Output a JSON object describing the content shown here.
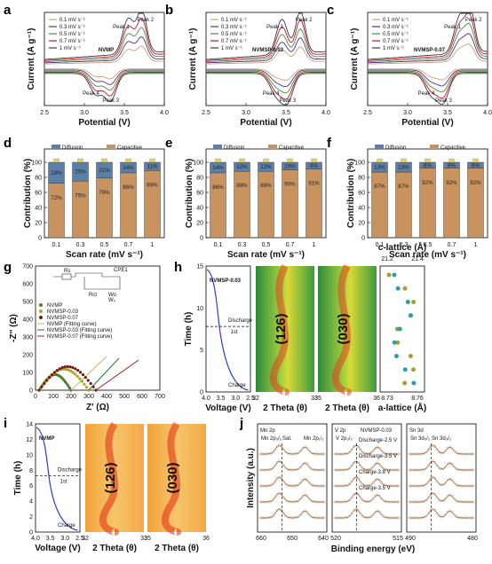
{
  "panels": {
    "a": "a",
    "b": "b",
    "c": "c",
    "d": "d",
    "e": "e",
    "f": "f",
    "g": "g",
    "h": "h",
    "i": "i",
    "j": "j"
  },
  "colors": {
    "diffusion": "#5b7fa6",
    "capacitive": "#c9935f",
    "cv": [
      "#c9a27a",
      "#5a2d82",
      "#4b8f3a",
      "#c8102e",
      "#3a3a3a"
    ]
  },
  "chart_data": [
    {
      "id": "a",
      "type": "line",
      "sample": "NVMP",
      "xlabel": "Potential (V)",
      "ylabel": "Current (A g⁻¹)",
      "xlim": [
        2.5,
        4.0
      ],
      "xticks": [
        "2.5",
        "3.0",
        "3.5",
        "4.0"
      ],
      "series": [
        {
          "name": "0.1 mV s⁻¹"
        },
        {
          "name": "0.3 mV s⁻¹"
        },
        {
          "name": "0.5 mV s⁻¹"
        },
        {
          "name": "0.7 mV s⁻¹"
        },
        {
          "name": "1 mV s⁻¹"
        }
      ],
      "peaks": {
        "p1": {
          "label": "Peak 1",
          "x": 3.55
        },
        "p2": {
          "label": "Peak 2",
          "x": 3.72
        },
        "p3": {
          "label": "Peak 3",
          "x": 3.33
        },
        "p4": {
          "label": "Peak 4",
          "x": 3.15
        }
      }
    },
    {
      "id": "b",
      "type": "line",
      "sample": "NVMSP-0.03",
      "xlabel": "Potential (V)",
      "ylabel": "Current (A g⁻¹)",
      "xlim": [
        2.5,
        4.0
      ],
      "xticks": [
        "2.5",
        "3.0",
        "3.5",
        "4.0"
      ],
      "series": [
        {
          "name": "0.1 mV s⁻¹"
        },
        {
          "name": "0.3 mV s⁻¹"
        },
        {
          "name": "0.5 mV s⁻¹"
        },
        {
          "name": "0.7 mV s⁻¹"
        },
        {
          "name": "1 mV s⁻¹"
        }
      ],
      "peaks": {
        "p1": {
          "label": "Peak 1",
          "x": 3.45
        },
        "p2": {
          "label": "Peak 2",
          "x": 3.68
        },
        "p3": {
          "label": "Peak 3",
          "x": 3.52
        },
        "p4": {
          "label": "Peak 4",
          "x": 3.38
        }
      }
    },
    {
      "id": "c",
      "type": "line",
      "sample": "NVMSP-0.07",
      "xlabel": "Potential (V)",
      "ylabel": "Current (A g⁻¹)",
      "xlim": [
        2.5,
        4.0
      ],
      "xticks": [
        "2.5",
        "3.0",
        "3.5",
        "4.0"
      ],
      "series": [
        {
          "name": "0.1 mV s⁻¹"
        },
        {
          "name": "0.3 mV s⁻¹"
        },
        {
          "name": "0.5 mV s⁻¹"
        },
        {
          "name": "0.7 mV s⁻¹"
        },
        {
          "name": "1 mV s⁻¹"
        }
      ],
      "peaks": {
        "p1": {
          "label": "Peak 1",
          "x": 3.65
        },
        "p2": {
          "label": "Peak 2",
          "x": 3.78
        },
        "p3": {
          "label": "Peak 3",
          "x": 3.45
        },
        "p4": {
          "label": "Peak 4",
          "x": 3.3
        }
      }
    },
    {
      "id": "d",
      "type": "bar",
      "xlabel": "Scan rate (mV s⁻¹)",
      "ylabel": "Contribution (%)",
      "ylim": [
        0,
        100
      ],
      "yticks": [
        "0",
        "20",
        "40",
        "60",
        "80",
        "100"
      ],
      "categories": [
        "0.1",
        "0.3",
        "0.5",
        "0.7",
        "1"
      ],
      "series": [
        {
          "name": "Diffusion",
          "values": [
            28,
            25,
            21,
            14,
            11
          ],
          "labels": [
            "28%",
            "25%",
            "21%",
            "14%",
            "11%"
          ]
        },
        {
          "name": "Capacitive",
          "values": [
            72,
            75,
            79,
            86,
            89
          ],
          "labels": [
            "72%",
            "75%",
            "79%",
            "86%",
            "89%"
          ]
        }
      ]
    },
    {
      "id": "e",
      "type": "bar",
      "xlabel": "Scan rate (mV s⁻¹)",
      "ylabel": "Contribution (%)",
      "ylim": [
        0,
        100
      ],
      "yticks": [
        "0",
        "20",
        "40",
        "60",
        "80",
        "100"
      ],
      "categories": [
        "0.1",
        "0.3",
        "0.5",
        "0.7",
        "1"
      ],
      "series": [
        {
          "name": "Diffusion",
          "values": [
            14,
            12,
            12,
            10,
            9
          ],
          "labels": [
            "14%",
            "12%",
            "12%",
            "10%",
            "9%"
          ]
        },
        {
          "name": "Capacitive",
          "values": [
            86,
            88,
            88,
            90,
            91
          ],
          "labels": [
            "86%",
            "88%",
            "88%",
            "90%",
            "91%"
          ]
        }
      ]
    },
    {
      "id": "f",
      "type": "bar",
      "xlabel": "Scan rate (mV s⁻¹)",
      "ylabel": "Contribution (%)",
      "ylim": [
        0,
        100
      ],
      "yticks": [
        "0",
        "20",
        "40",
        "60",
        "80",
        "100"
      ],
      "categories": [
        "0.1",
        "0.3",
        "0.5",
        "0.7",
        "1"
      ],
      "series": [
        {
          "name": "Diffusion",
          "values": [
            13,
            13,
            8,
            8,
            8
          ],
          "labels": [
            "13%",
            "13%",
            "8%",
            "8%",
            "8%"
          ]
        },
        {
          "name": "Capacitive",
          "values": [
            87,
            87,
            92,
            92,
            92
          ],
          "labels": [
            "87%",
            "87%",
            "92%",
            "92%",
            "92%"
          ]
        }
      ]
    },
    {
      "id": "g",
      "type": "scatter",
      "xlabel": "Z' (Ω)",
      "ylabel": "-Z'' (Ω)",
      "xlim": [
        0,
        700
      ],
      "ylim": [
        0,
        700
      ],
      "xticks": [
        "0",
        "100",
        "200",
        "300",
        "400",
        "500",
        "600",
        "700"
      ],
      "yticks": [
        "0",
        "100",
        "200",
        "300",
        "400",
        "500",
        "600",
        "700"
      ],
      "series": [
        {
          "name": "NVMP",
          "color": "#4b7d2a"
        },
        {
          "name": "NVMSP-0.03",
          "color": "#a8a81c"
        },
        {
          "name": "NVMSP-0.07",
          "color": "#7a1a1a"
        },
        {
          "name": "NVMP (Fitting curve)",
          "color": "#c8b560"
        },
        {
          "name": "NVMSP-0.03 (Fitting curve)",
          "color": "#1a7a3a"
        },
        {
          "name": "NVMSP-0.07 (Fitting curve)",
          "color": "#a62020"
        }
      ],
      "circuit": [
        "Rs",
        "CPE1",
        "Rct",
        "Wo",
        "W₀"
      ]
    },
    {
      "id": "h",
      "type": "heatmap",
      "sample": "NVMSP-0.03",
      "ylabel": "Time (h)",
      "xlabel": "Voltage (V)",
      "xticks": [
        "4.0",
        "3.5",
        "3.0",
        "2.5"
      ],
      "yticks": [
        "0",
        "5",
        "10",
        "15"
      ],
      "annotations": [
        "Discharge",
        "1st",
        "Charge"
      ],
      "maps": [
        {
          "label": "(126)",
          "xticks": [
            "32",
            "33"
          ]
        },
        {
          "label": "(030)",
          "xticks": [
            "35",
            "36"
          ]
        }
      ],
      "map_xlabel": "2 Theta (θ)",
      "lattice": {
        "top_label": "c-lattice (Å)",
        "top_ticks": [
          "21.2",
          "21.4"
        ],
        "bottom_label": "a-lattice (Å)",
        "bottom_ticks": [
          "8.73",
          "8.76"
        ]
      }
    },
    {
      "id": "i",
      "type": "heatmap",
      "sample": "NVMP",
      "ylabel": "Time (h)",
      "xlabel": "Voltage (V)",
      "xticks": [
        "4.0",
        "3.5",
        "3.0",
        "2.5"
      ],
      "yticks": [
        "0",
        "2",
        "4",
        "6",
        "8",
        "10",
        "12",
        "14"
      ],
      "annotations": [
        "Discharge",
        "1st",
        "Charge"
      ],
      "maps": [
        {
          "label": "(126)",
          "xticks": [
            "32",
            "33"
          ]
        },
        {
          "label": "(030)",
          "xticks": [
            "35",
            "36"
          ]
        }
      ],
      "map_xlabel": "2 Theta (θ)"
    },
    {
      "id": "j",
      "type": "line",
      "sample": "NVMSP-0.03",
      "ylabel": "Intensity (a.u.)",
      "xlabel": "Binding energy (eV)",
      "subpanels": [
        {
          "title": "Mn 2p",
          "labels": [
            "Mn 2p₃/₂",
            "Sat.",
            "Mn 2p₁/₂"
          ],
          "xticks": [
            "660",
            "650",
            "640"
          ]
        },
        {
          "title": "V 2p",
          "labels": [
            "V 2p₃/₂"
          ],
          "xticks": [
            "520",
            "515"
          ]
        },
        {
          "title": "Sn 3d",
          "labels": [
            "Sn 3d₅/₂",
            "Sn 3d₃/₂"
          ],
          "xticks": [
            "490",
            "480"
          ]
        }
      ],
      "spectra": [
        "Discharge-2.5 V",
        "Discharge-3.5 V",
        "Charge-3.8 V",
        "Charge-3.5 V"
      ]
    }
  ]
}
